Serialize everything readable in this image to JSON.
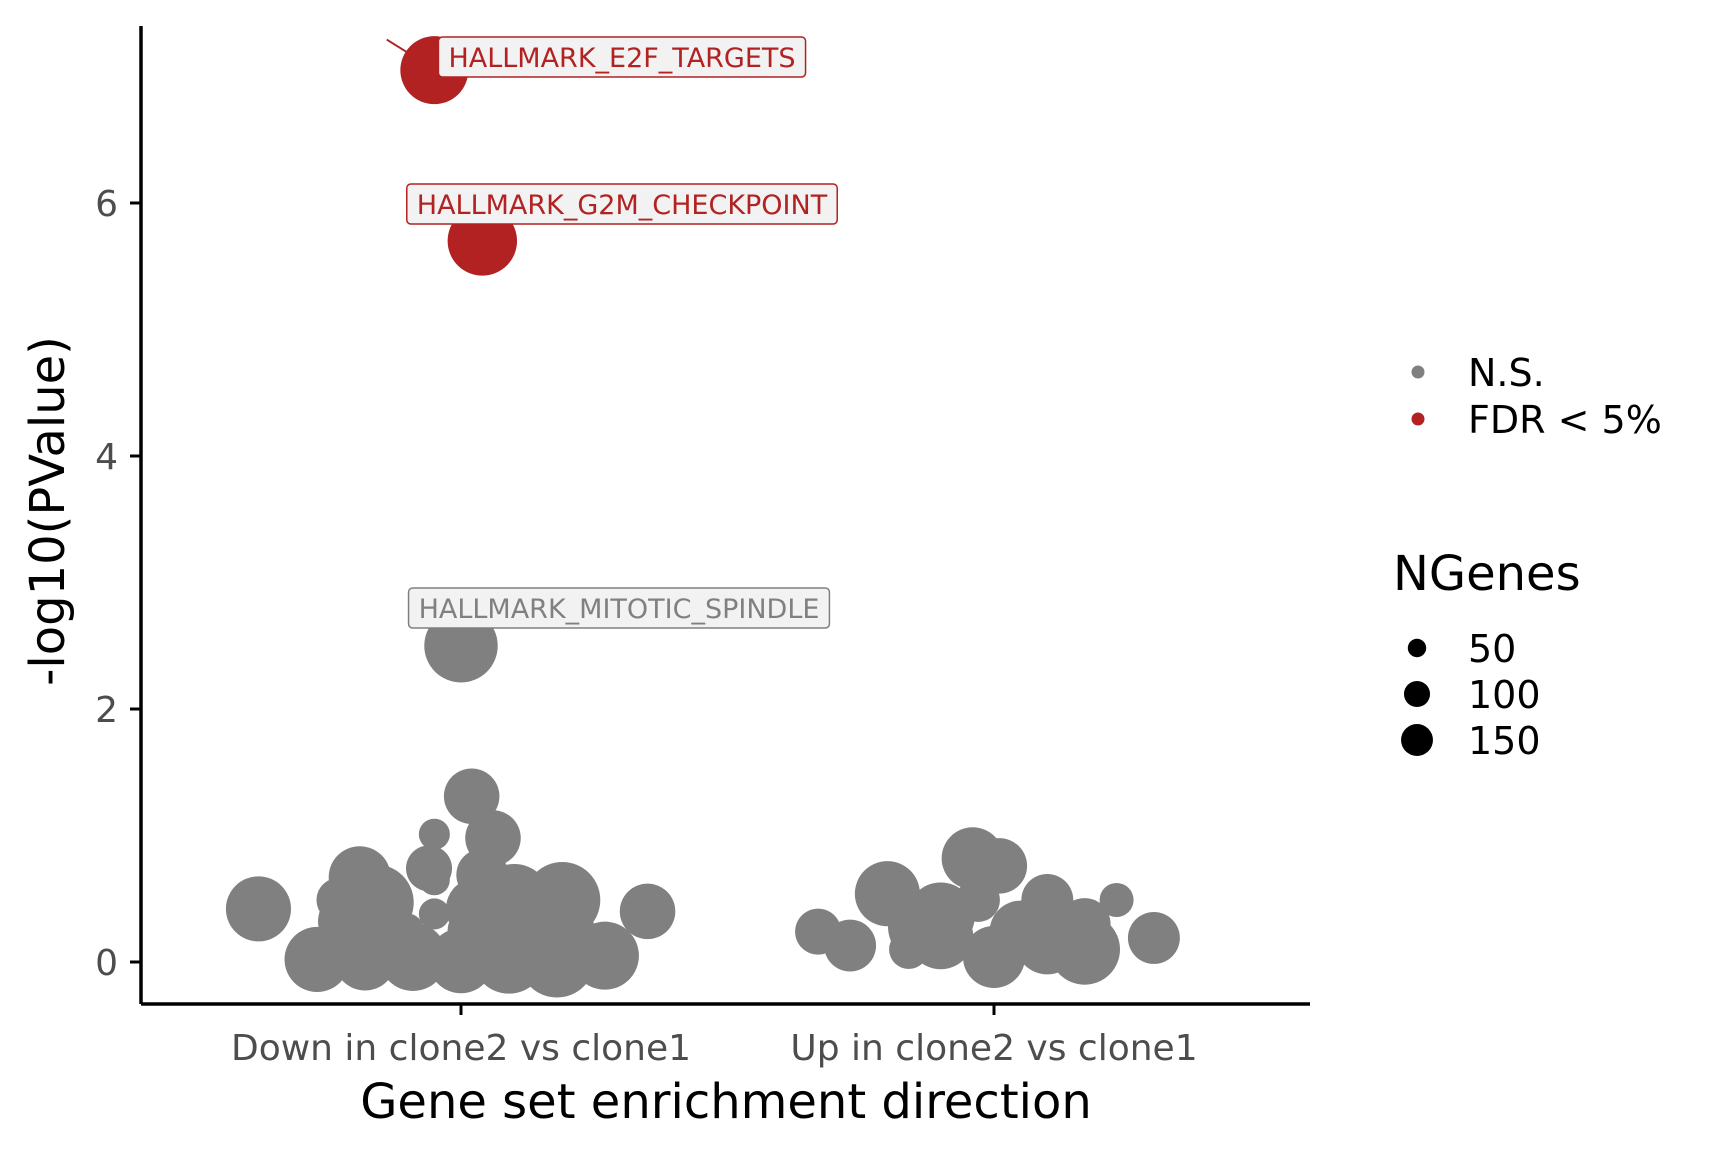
{
  "chart_data": {
    "type": "scatter",
    "xlabel": "Gene set enrichment direction",
    "ylabel": "-log10(PValue)",
    "categories": [
      "Down in clone2 vs clone1",
      "Up in clone2 vs clone1"
    ],
    "ylim": [
      -0.35,
      7.5
    ],
    "yticks": [
      0,
      2,
      4,
      6
    ],
    "grid": false,
    "colors": {
      "N.S.": "#808080",
      "FDR < 5%": "#b22222"
    },
    "legend": {
      "placement": "right",
      "color_title": "",
      "color_entries": [
        "N.S.",
        "FDR < 5%"
      ],
      "size_title": "NGenes",
      "size_entries": [
        50,
        100,
        150
      ]
    },
    "annotations": [
      {
        "label": "HALLMARK_E2F_TARGETS",
        "status": "FDR < 5%"
      },
      {
        "label": "HALLMARK_G2M_CHECKPOINT",
        "status": "FDR < 5%"
      },
      {
        "label": "HALLMARK_MITOTIC_SPINDLE",
        "status": "N.S."
      }
    ],
    "points": [
      {
        "cat": 0,
        "jitter": -0.05,
        "y": 7.05,
        "size": 120,
        "status": "FDR < 5%",
        "label": "HALLMARK_E2F_TARGETS"
      },
      {
        "cat": 0,
        "jitter": 0.04,
        "y": 5.7,
        "size": 125,
        "status": "FDR < 5%",
        "label": "HALLMARK_G2M_CHECKPOINT"
      },
      {
        "cat": 0,
        "jitter": 0.0,
        "y": 2.5,
        "size": 140,
        "status": "N.S.",
        "label": "HALLMARK_MITOTIC_SPINDLE"
      },
      {
        "cat": 0,
        "jitter": 0.02,
        "y": 1.31,
        "size": 80,
        "status": "N.S."
      },
      {
        "cat": 0,
        "jitter": -0.05,
        "y": 1.01,
        "size": 25,
        "status": "N.S."
      },
      {
        "cat": 0,
        "jitter": 0.06,
        "y": 0.98,
        "size": 80,
        "status": "N.S."
      },
      {
        "cat": 0,
        "jitter": -0.19,
        "y": 0.67,
        "size": 100,
        "status": "N.S."
      },
      {
        "cat": 0,
        "jitter": -0.06,
        "y": 0.74,
        "size": 55,
        "status": "N.S."
      },
      {
        "cat": 0,
        "jitter": -0.05,
        "y": 0.65,
        "size": 25,
        "status": "N.S."
      },
      {
        "cat": 0,
        "jitter": 0.04,
        "y": 0.69,
        "size": 70,
        "status": "N.S."
      },
      {
        "cat": 0,
        "jitter": 0.19,
        "y": 0.65,
        "size": 10,
        "status": "N.S."
      },
      {
        "cat": 0,
        "jitter": -0.38,
        "y": 0.42,
        "size": 110,
        "status": "N.S."
      },
      {
        "cat": 0,
        "jitter": -0.23,
        "y": 0.49,
        "size": 50,
        "status": "N.S."
      },
      {
        "cat": 0,
        "jitter": -0.16,
        "y": 0.47,
        "size": 150,
        "status": "N.S."
      },
      {
        "cat": 0,
        "jitter": -0.05,
        "y": 0.38,
        "size": 25,
        "status": "N.S."
      },
      {
        "cat": 0,
        "jitter": 0.03,
        "y": 0.42,
        "size": 100,
        "status": "N.S."
      },
      {
        "cat": 0,
        "jitter": 0.1,
        "y": 0.49,
        "size": 135,
        "status": "N.S."
      },
      {
        "cat": 0,
        "jitter": 0.19,
        "y": 0.49,
        "size": 150,
        "status": "N.S."
      },
      {
        "cat": 0,
        "jitter": 0.14,
        "y": 0.33,
        "size": 120,
        "status": "N.S."
      },
      {
        "cat": 0,
        "jitter": -0.21,
        "y": 0.32,
        "size": 100,
        "status": "N.S."
      },
      {
        "cat": 0,
        "jitter": 0.2,
        "y": 0.3,
        "size": 70,
        "status": "N.S."
      },
      {
        "cat": 0,
        "jitter": -0.1,
        "y": 0.26,
        "size": 25,
        "status": "N.S."
      },
      {
        "cat": 0,
        "jitter": 0.03,
        "y": 0.24,
        "size": 90,
        "status": "N.S."
      },
      {
        "cat": 0,
        "jitter": 0.35,
        "y": 0.4,
        "size": 80,
        "status": "N.S."
      },
      {
        "cat": 0,
        "jitter": -0.21,
        "y": 0.15,
        "size": 60,
        "status": "N.S."
      },
      {
        "cat": 0,
        "jitter": -0.27,
        "y": 0.02,
        "size": 110,
        "status": "N.S."
      },
      {
        "cat": 0,
        "jitter": -0.18,
        "y": 0.02,
        "size": 100,
        "status": "N.S."
      },
      {
        "cat": 0,
        "jitter": -0.09,
        "y": 0.04,
        "size": 120,
        "status": "N.S."
      },
      {
        "cat": 0,
        "jitter": 0.0,
        "y": 0.01,
        "size": 110,
        "status": "N.S."
      },
      {
        "cat": 0,
        "jitter": 0.09,
        "y": 0.04,
        "size": 140,
        "status": "N.S."
      },
      {
        "cat": 0,
        "jitter": 0.18,
        "y": 0.02,
        "size": 150,
        "status": "N.S."
      },
      {
        "cat": 0,
        "jitter": 0.27,
        "y": 0.05,
        "size": 120,
        "status": "N.S."
      },
      {
        "cat": 1,
        "jitter": -0.04,
        "y": 0.82,
        "size": 100,
        "status": "N.S."
      },
      {
        "cat": 1,
        "jitter": 0.01,
        "y": 0.76,
        "size": 80,
        "status": "N.S."
      },
      {
        "cat": 1,
        "jitter": -0.2,
        "y": 0.54,
        "size": 110,
        "status": "N.S."
      },
      {
        "cat": 1,
        "jitter": -0.03,
        "y": 0.49,
        "size": 50,
        "status": "N.S."
      },
      {
        "cat": 1,
        "jitter": 0.1,
        "y": 0.49,
        "size": 70,
        "status": "N.S."
      },
      {
        "cat": 1,
        "jitter": 0.23,
        "y": 0.49,
        "size": 30,
        "status": "N.S."
      },
      {
        "cat": 1,
        "jitter": -0.33,
        "y": 0.24,
        "size": 55,
        "status": "N.S."
      },
      {
        "cat": 1,
        "jitter": -0.27,
        "y": 0.13,
        "size": 70,
        "status": "N.S."
      },
      {
        "cat": 1,
        "jitter": -0.13,
        "y": 0.28,
        "size": 140,
        "status": "N.S."
      },
      {
        "cat": 1,
        "jitter": -0.1,
        "y": 0.36,
        "size": 120,
        "status": "N.S."
      },
      {
        "cat": 1,
        "jitter": -0.1,
        "y": 0.2,
        "size": 110,
        "status": "N.S."
      },
      {
        "cat": 1,
        "jitter": -0.16,
        "y": 0.1,
        "size": 40,
        "status": "N.S."
      },
      {
        "cat": 1,
        "jitter": 0.05,
        "y": 0.24,
        "size": 100,
        "status": "N.S."
      },
      {
        "cat": 1,
        "jitter": 0.1,
        "y": 0.16,
        "size": 110,
        "status": "N.S."
      },
      {
        "cat": 1,
        "jitter": 0.17,
        "y": 0.3,
        "size": 70,
        "status": "N.S."
      },
      {
        "cat": 1,
        "jitter": 0.17,
        "y": 0.1,
        "size": 130,
        "status": "N.S."
      },
      {
        "cat": 1,
        "jitter": 0.3,
        "y": 0.19,
        "size": 70,
        "status": "N.S."
      },
      {
        "cat": 1,
        "jitter": 0.0,
        "y": 0.04,
        "size": 100,
        "status": "N.S."
      }
    ]
  }
}
